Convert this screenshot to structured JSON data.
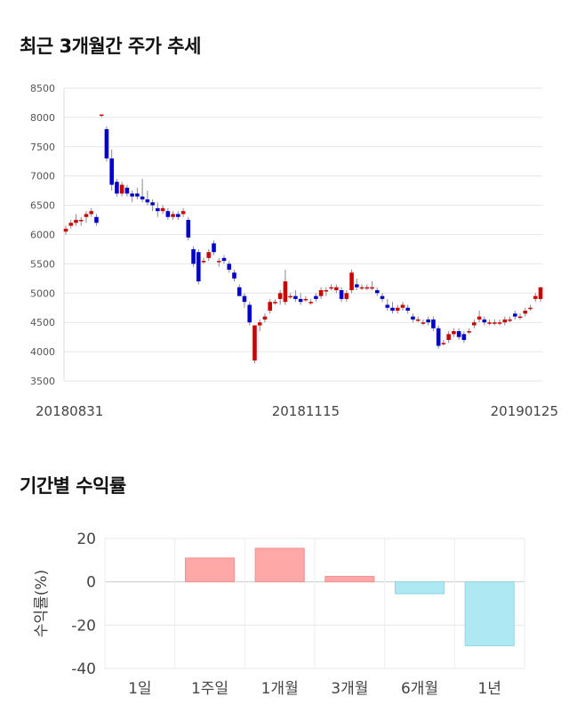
{
  "titles": {
    "price": "최근 3개월간 주가 추세",
    "returns": "기간별 수익률"
  },
  "colors": {
    "up": "#cc0000",
    "down": "#0000cc",
    "pos_bar": "#ffa8a8",
    "neg_bar": "#aee9f3"
  },
  "chart_data": [
    {
      "type": "candlestick",
      "title": "최근 3개월간 주가 추세",
      "ylim": [
        3500,
        8500
      ],
      "yticks": [
        3500,
        4000,
        4500,
        5000,
        5500,
        6000,
        6500,
        7000,
        7500,
        8000,
        8500
      ],
      "xtick_labels": [
        "20180831",
        "20181115",
        "20190125"
      ],
      "xtick_index": [
        0,
        47,
        94
      ],
      "grid": true,
      "candles": [
        [
          6050,
          6150,
          6000,
          6100
        ],
        [
          6150,
          6250,
          6100,
          6200
        ],
        [
          6200,
          6350,
          6150,
          6250
        ],
        [
          6250,
          6300,
          6150,
          6250
        ],
        [
          6300,
          6400,
          6200,
          6350
        ],
        [
          6350,
          6450,
          6300,
          6400
        ],
        [
          6300,
          6350,
          6150,
          6200
        ],
        [
          8050,
          8050,
          8000,
          8050
        ],
        [
          7800,
          7850,
          7250,
          7300
        ],
        [
          7300,
          7450,
          6750,
          6850
        ],
        [
          6900,
          6950,
          6650,
          6700
        ],
        [
          6700,
          6900,
          6650,
          6850
        ],
        [
          6800,
          6850,
          6650,
          6700
        ],
        [
          6700,
          6750,
          6550,
          6650
        ],
        [
          6700,
          6800,
          6600,
          6650
        ],
        [
          6650,
          6950,
          6550,
          6600
        ],
        [
          6600,
          6750,
          6500,
          6550
        ],
        [
          6550,
          6600,
          6400,
          6500
        ],
        [
          6450,
          6550,
          6300,
          6400
        ],
        [
          6400,
          6500,
          6350,
          6450
        ],
        [
          6400,
          6450,
          6250,
          6300
        ],
        [
          6300,
          6400,
          6250,
          6350
        ],
        [
          6350,
          6400,
          6250,
          6300
        ],
        [
          6350,
          6450,
          6300,
          6400
        ],
        [
          6250,
          6300,
          5900,
          5950
        ],
        [
          5750,
          5800,
          5450,
          5500
        ],
        [
          5700,
          5750,
          5150,
          5200
        ],
        [
          5550,
          5600,
          5500,
          5550
        ],
        [
          5600,
          5750,
          5550,
          5700
        ],
        [
          5850,
          5900,
          5650,
          5700
        ],
        [
          5550,
          5600,
          5450,
          5550
        ],
        [
          5600,
          5650,
          5500,
          5550
        ],
        [
          5500,
          5550,
          5350,
          5400
        ],
        [
          5350,
          5400,
          5200,
          5250
        ],
        [
          5100,
          5150,
          4950,
          4950
        ],
        [
          4950,
          5000,
          4750,
          4850
        ],
        [
          4800,
          4850,
          4450,
          4500
        ],
        [
          3850,
          4450,
          3800,
          4450
        ],
        [
          4450,
          4550,
          4350,
          4500
        ],
        [
          4550,
          4650,
          4500,
          4600
        ],
        [
          4700,
          4900,
          4650,
          4850
        ],
        [
          4850,
          4900,
          4800,
          4850
        ],
        [
          4900,
          5050,
          4800,
          5000
        ],
        [
          4850,
          5400,
          4800,
          5200
        ],
        [
          4950,
          5000,
          4900,
          4950
        ],
        [
          4950,
          5050,
          4850,
          4900
        ],
        [
          4900,
          5000,
          4800,
          4850
        ],
        [
          4900,
          4950,
          4850,
          4900
        ],
        [
          4850,
          4900,
          4800,
          4850
        ],
        [
          4950,
          5000,
          4850,
          4900
        ],
        [
          4950,
          5100,
          4900,
          5050
        ],
        [
          5050,
          5100,
          4950,
          5050
        ],
        [
          5100,
          5150,
          5050,
          5100
        ],
        [
          5050,
          5150,
          5000,
          5100
        ],
        [
          5050,
          5100,
          4850,
          4900
        ],
        [
          4900,
          5050,
          4850,
          5000
        ],
        [
          5050,
          5400,
          5000,
          5350
        ],
        [
          5150,
          5250,
          5050,
          5100
        ],
        [
          5100,
          5150,
          5050,
          5100
        ],
        [
          5100,
          5150,
          5050,
          5100
        ],
        [
          5100,
          5200,
          5050,
          5100
        ],
        [
          5050,
          5100,
          4950,
          5000
        ],
        [
          4950,
          5000,
          4850,
          4900
        ],
        [
          4800,
          4900,
          4700,
          4750
        ],
        [
          4750,
          4850,
          4650,
          4700
        ],
        [
          4700,
          4800,
          4650,
          4750
        ],
        [
          4750,
          4850,
          4700,
          4800
        ],
        [
          4750,
          4800,
          4650,
          4700
        ],
        [
          4600,
          4650,
          4500,
          4550
        ],
        [
          4550,
          4600,
          4500,
          4550
        ],
        [
          4500,
          4550,
          4450,
          4500
        ],
        [
          4550,
          4600,
          4450,
          4500
        ],
        [
          4550,
          4600,
          4350,
          4400
        ],
        [
          4400,
          4450,
          4050,
          4100
        ],
        [
          4150,
          4200,
          4100,
          4150
        ],
        [
          4200,
          4350,
          4150,
          4300
        ],
        [
          4300,
          4400,
          4250,
          4350
        ],
        [
          4350,
          4400,
          4200,
          4250
        ],
        [
          4300,
          4350,
          4150,
          4200
        ],
        [
          4350,
          4400,
          4300,
          4350
        ],
        [
          4450,
          4550,
          4400,
          4500
        ],
        [
          4550,
          4700,
          4500,
          4600
        ],
        [
          4550,
          4600,
          4450,
          4500
        ],
        [
          4500,
          4550,
          4450,
          4500
        ],
        [
          4500,
          4550,
          4450,
          4500
        ],
        [
          4500,
          4550,
          4450,
          4500
        ],
        [
          4500,
          4600,
          4450,
          4550
        ],
        [
          4550,
          4600,
          4500,
          4550
        ],
        [
          4650,
          4700,
          4550,
          4600
        ],
        [
          4600,
          4650,
          4550,
          4600
        ],
        [
          4650,
          4750,
          4600,
          4700
        ],
        [
          4750,
          4800,
          4700,
          4750
        ],
        [
          4900,
          5000,
          4850,
          4950
        ],
        [
          4900,
          5100,
          4850,
          5100
        ]
      ]
    },
    {
      "type": "bar",
      "title": "기간별 수익률",
      "ylabel": "수익률(%)",
      "ylim": [
        -40,
        20
      ],
      "yticks": [
        20,
        0,
        -20,
        -40
      ],
      "categories": [
        "1일",
        "1주일",
        "1개월",
        "3개월",
        "6개월",
        "1년"
      ],
      "values": [
        0,
        11,
        15.5,
        2.5,
        -5.5,
        -29.5
      ]
    }
  ]
}
